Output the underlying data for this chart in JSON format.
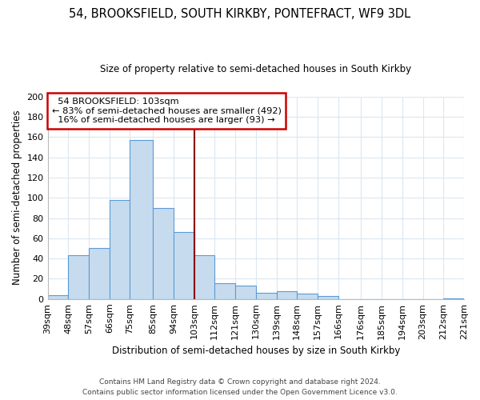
{
  "title": "54, BROOKSFIELD, SOUTH KIRKBY, PONTEFRACT, WF9 3DL",
  "subtitle": "Size of property relative to semi-detached houses in South Kirkby",
  "xlabel": "Distribution of semi-detached houses by size in South Kirkby",
  "ylabel": "Number of semi-detached properties",
  "bins": [
    39,
    48,
    57,
    66,
    75,
    85,
    94,
    103,
    112,
    121,
    130,
    139,
    148,
    157,
    166,
    176,
    185,
    194,
    203,
    212,
    221
  ],
  "counts": [
    4,
    43,
    50,
    98,
    157,
    90,
    66,
    43,
    16,
    13,
    6,
    8,
    5,
    3,
    0,
    0,
    0,
    0,
    0,
    1
  ],
  "bar_color": "#c6dcee",
  "bar_edge_color": "#5b9bd5",
  "highlight_line_color": "#8b0000",
  "property_size": 103,
  "annotation_title": "54 BROOKSFIELD: 103sqm",
  "annotation_line1": "← 83% of semi-detached houses are smaller (492)",
  "annotation_line2": "16% of semi-detached houses are larger (93) →",
  "annotation_box_color": "#ffffff",
  "annotation_box_edge_color": "#cc0000",
  "tick_labels": [
    "39sqm",
    "48sqm",
    "57sqm",
    "66sqm",
    "75sqm",
    "85sqm",
    "94sqm",
    "103sqm",
    "112sqm",
    "121sqm",
    "130sqm",
    "139sqm",
    "148sqm",
    "157sqm",
    "166sqm",
    "176sqm",
    "185sqm",
    "194sqm",
    "203sqm",
    "212sqm",
    "221sqm"
  ],
  "ylim": [
    0,
    200
  ],
  "yticks": [
    0,
    20,
    40,
    60,
    80,
    100,
    120,
    140,
    160,
    180,
    200
  ],
  "footer_line1": "Contains HM Land Registry data © Crown copyright and database right 2024.",
  "footer_line2": "Contains public sector information licensed under the Open Government Licence v3.0.",
  "background_color": "#ffffff",
  "grid_color": "#dce6f0"
}
